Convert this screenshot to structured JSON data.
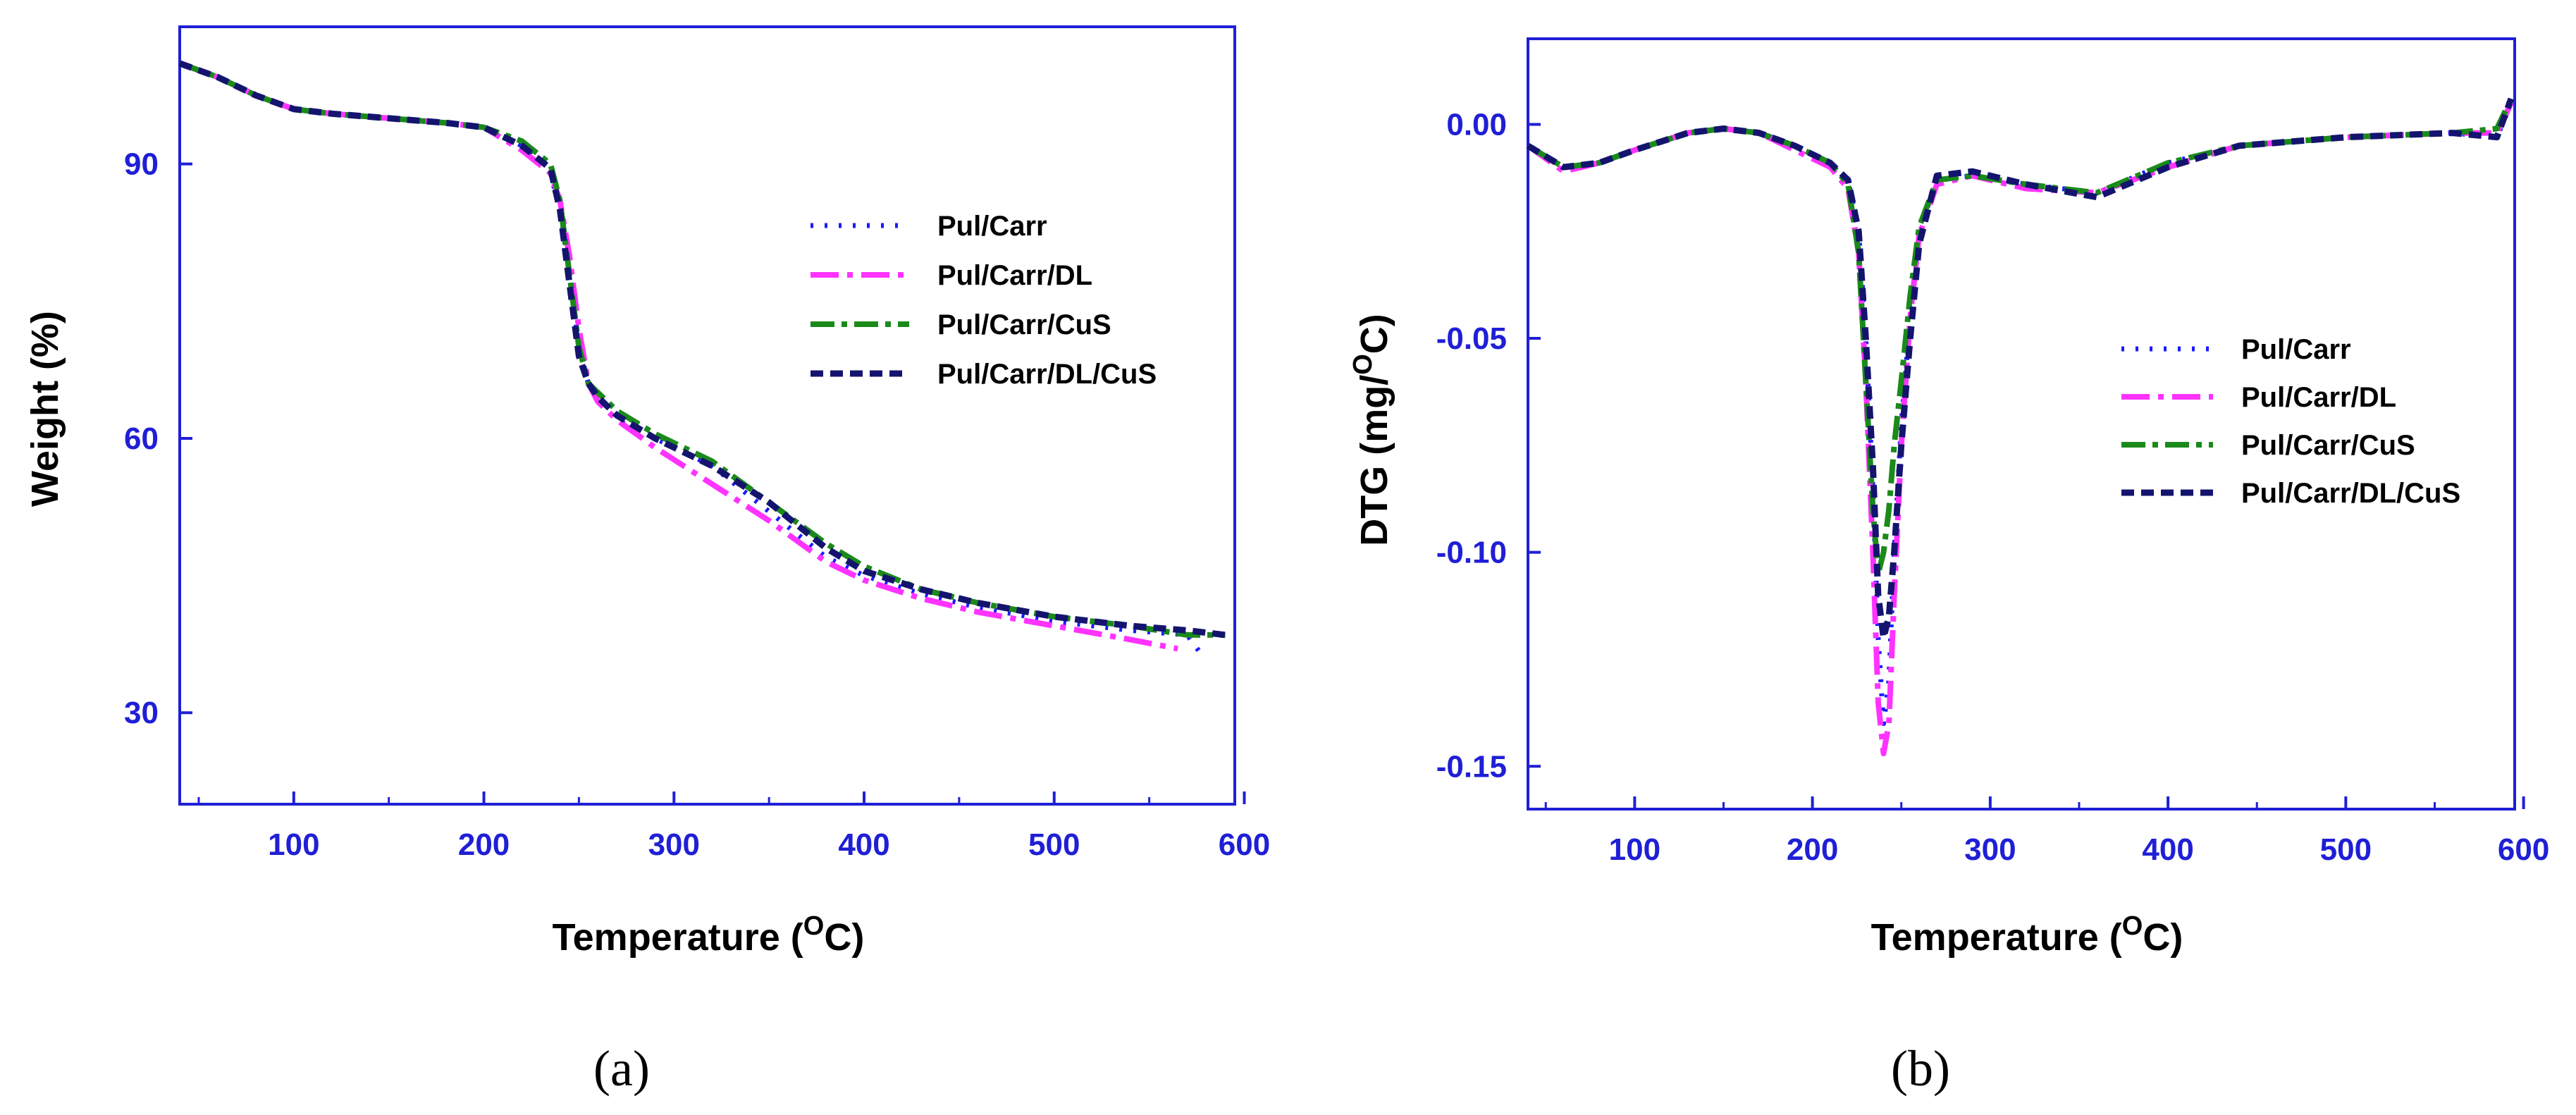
{
  "colors": {
    "axis": "#1f1fd6",
    "tick_text": "#1f1fd6",
    "series": [
      "#1a1aff",
      "#ff33ff",
      "#1a8a1a",
      "#14146e"
    ]
  },
  "chart_data": [
    {
      "type": "line",
      "panel": "a",
      "panel_label": "(a)",
      "xlabel_main": "Temperature (",
      "xlabel_sup": "O",
      "xlabel_end": "C)",
      "ylabel": "Weight (%)",
      "xlim": [
        40,
        595
      ],
      "ylim": [
        20,
        105
      ],
      "xticks": [
        100,
        200,
        300,
        400,
        500,
        600
      ],
      "yticks": [
        30,
        60,
        90
      ],
      "xtick_labels": [
        "100",
        "200",
        "300",
        "400",
        "500",
        "600"
      ],
      "ytick_labels": [
        "30",
        "60",
        "90"
      ],
      "legend_position": "top-right",
      "series": [
        {
          "name": "Pul/Carr",
          "x": [
            40,
            60,
            80,
            100,
            120,
            150,
            180,
            200,
            220,
            235,
            240,
            245,
            250,
            255,
            260,
            270,
            290,
            320,
            350,
            380,
            400,
            430,
            460,
            500,
            540,
            570,
            577
          ],
          "y": [
            101,
            99.5,
            97.5,
            96,
            95.5,
            95,
            94.5,
            94,
            92,
            89,
            85,
            78,
            70,
            66,
            64,
            62,
            60,
            57,
            52,
            47,
            45,
            43,
            41.5,
            40,
            39,
            38.5,
            36.5
          ]
        },
        {
          "name": "Pul/Carr/DL",
          "x": [
            40,
            60,
            80,
            100,
            120,
            150,
            180,
            200,
            220,
            235,
            240,
            245,
            250,
            255,
            260,
            270,
            290,
            320,
            350,
            380,
            400,
            430,
            460,
            500,
            540,
            565
          ],
          "y": [
            101,
            99.5,
            97.5,
            96,
            95.5,
            95,
            94.5,
            94,
            91.5,
            89,
            86,
            80,
            72,
            66,
            64,
            62,
            59,
            55,
            51,
            46.5,
            44.5,
            42.5,
            41,
            39.5,
            38,
            37
          ]
        },
        {
          "name": "Pul/Carr/CuS",
          "x": [
            40,
            60,
            80,
            100,
            120,
            150,
            180,
            200,
            220,
            235,
            240,
            245,
            250,
            255,
            260,
            270,
            290,
            320,
            350,
            380,
            400,
            430,
            460,
            500,
            540,
            570,
            590
          ],
          "y": [
            101,
            99.5,
            97.5,
            96,
            95.5,
            95,
            94.5,
            94,
            92.5,
            90,
            86,
            78,
            70,
            66,
            65,
            63,
            60.5,
            57.5,
            53,
            48.5,
            46,
            43.5,
            42,
            40.5,
            39.5,
            38.5,
            38.5
          ]
        },
        {
          "name": "Pul/Carr/DL/CuS",
          "x": [
            40,
            60,
            80,
            100,
            120,
            150,
            180,
            200,
            220,
            235,
            240,
            245,
            250,
            255,
            260,
            270,
            290,
            320,
            350,
            380,
            400,
            430,
            460,
            500,
            540,
            570,
            590
          ],
          "y": [
            101,
            99.5,
            97.5,
            96,
            95.5,
            95,
            94.5,
            94,
            92,
            89.5,
            85,
            77,
            69,
            66,
            64.5,
            62.5,
            60,
            57,
            53,
            48,
            45.5,
            43.5,
            42,
            40.5,
            39.5,
            39,
            38.5
          ]
        }
      ]
    },
    {
      "type": "line",
      "panel": "b",
      "panel_label": "(b)",
      "xlabel_main": "Temperature (",
      "xlabel_sup": "O",
      "xlabel_end": "C)",
      "ylabel_main": "DTG (mg/",
      "ylabel_sup": "O",
      "ylabel_end": "C)",
      "xlim": [
        40,
        595
      ],
      "ylim": [
        -0.16,
        0.02
      ],
      "xticks": [
        100,
        200,
        300,
        400,
        500,
        600
      ],
      "yticks": [
        0.0,
        -0.05,
        -0.1,
        -0.15
      ],
      "xtick_labels": [
        "100",
        "200",
        "300",
        "400",
        "500",
        "600"
      ],
      "ytick_labels": [
        "0.00",
        "-0.05",
        "-0.10",
        "-0.15"
      ],
      "legend_position": "right",
      "series": [
        {
          "name": "Pul/Carr",
          "x": [
            40,
            60,
            80,
            100,
            130,
            150,
            170,
            190,
            210,
            220,
            226,
            230,
            234,
            237,
            240,
            243,
            246,
            250,
            255,
            260,
            270,
            290,
            320,
            360,
            400,
            440,
            500,
            560,
            585,
            593
          ],
          "y": [
            -0.005,
            -0.01,
            -0.009,
            -0.006,
            -0.002,
            -0.001,
            -0.002,
            -0.005,
            -0.009,
            -0.013,
            -0.025,
            -0.05,
            -0.085,
            -0.12,
            -0.14,
            -0.13,
            -0.1,
            -0.07,
            -0.045,
            -0.025,
            -0.013,
            -0.012,
            -0.014,
            -0.016,
            -0.009,
            -0.005,
            -0.003,
            -0.002,
            -0.003,
            0.005
          ]
        },
        {
          "name": "Pul/Carr/DL",
          "x": [
            40,
            60,
            80,
            100,
            130,
            150,
            170,
            190,
            210,
            220,
            226,
            230,
            234,
            237,
            240,
            243,
            246,
            250,
            255,
            260,
            270,
            290,
            320,
            360,
            400,
            440,
            500,
            560,
            585,
            593
          ],
          "y": [
            -0.005,
            -0.011,
            -0.009,
            -0.006,
            -0.002,
            -0.001,
            -0.002,
            -0.006,
            -0.01,
            -0.015,
            -0.03,
            -0.06,
            -0.1,
            -0.135,
            -0.147,
            -0.14,
            -0.11,
            -0.075,
            -0.045,
            -0.026,
            -0.014,
            -0.012,
            -0.015,
            -0.016,
            -0.01,
            -0.005,
            -0.003,
            -0.002,
            -0.002,
            0.005
          ]
        },
        {
          "name": "Pul/Carr/CuS",
          "x": [
            40,
            60,
            80,
            100,
            130,
            150,
            170,
            190,
            210,
            220,
            226,
            230,
            234,
            237,
            240,
            243,
            246,
            250,
            255,
            260,
            270,
            290,
            320,
            360,
            400,
            440,
            500,
            560,
            585,
            593
          ],
          "y": [
            -0.005,
            -0.01,
            -0.009,
            -0.006,
            -0.002,
            -0.001,
            -0.002,
            -0.005,
            -0.009,
            -0.014,
            -0.03,
            -0.06,
            -0.09,
            -0.105,
            -0.1,
            -0.09,
            -0.075,
            -0.06,
            -0.04,
            -0.024,
            -0.013,
            -0.012,
            -0.014,
            -0.016,
            -0.009,
            -0.005,
            -0.003,
            -0.002,
            -0.001,
            0.006
          ]
        },
        {
          "name": "Pul/Carr/DL/CuS",
          "x": [
            40,
            60,
            80,
            100,
            130,
            150,
            170,
            190,
            210,
            220,
            226,
            230,
            234,
            237,
            240,
            243,
            246,
            250,
            255,
            260,
            270,
            290,
            320,
            360,
            400,
            440,
            500,
            560,
            585,
            593
          ],
          "y": [
            -0.005,
            -0.01,
            -0.009,
            -0.006,
            -0.002,
            -0.001,
            -0.002,
            -0.005,
            -0.009,
            -0.013,
            -0.025,
            -0.05,
            -0.08,
            -0.11,
            -0.12,
            -0.115,
            -0.1,
            -0.075,
            -0.05,
            -0.028,
            -0.012,
            -0.011,
            -0.014,
            -0.017,
            -0.01,
            -0.005,
            -0.003,
            -0.002,
            -0.003,
            0.006
          ]
        }
      ]
    }
  ]
}
